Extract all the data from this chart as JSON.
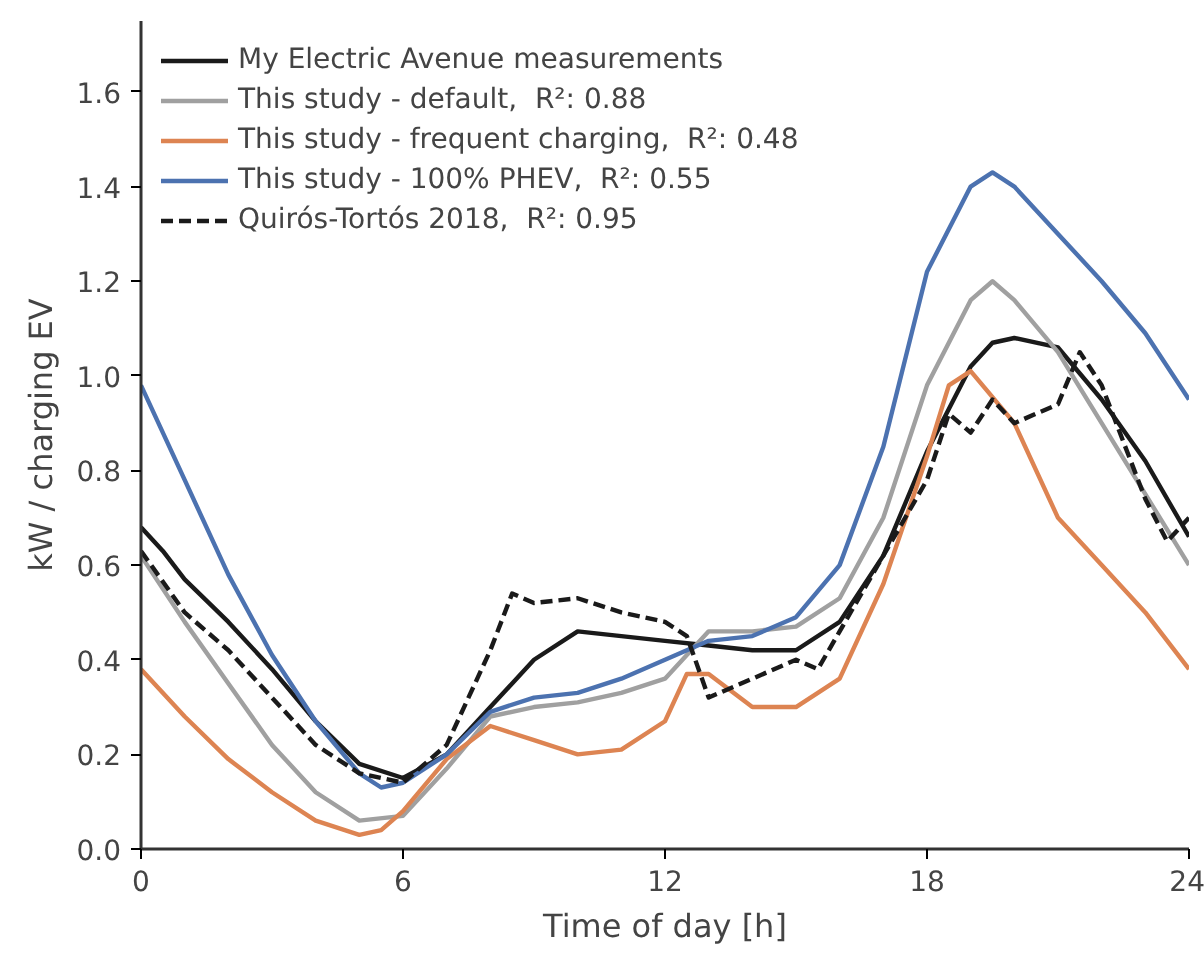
{
  "chart_data": {
    "type": "line",
    "xlabel": "Time of day [h]",
    "ylabel": "kW / charging EV",
    "xlim": [
      0,
      24
    ],
    "ylim": [
      0,
      1.75
    ],
    "xticks": [
      0,
      6,
      12,
      18,
      24
    ],
    "yticks": [
      {
        "value": 0,
        "label": "0.0"
      },
      0.2,
      0.4,
      0.6,
      0.8,
      {
        "value": 1,
        "label": "1.0"
      },
      1.2,
      1.4,
      1.6
    ],
    "grid": false,
    "legend": "top left",
    "series": [
      {
        "name": "My Electric Avenue measurements",
        "color": "#1a1a1a",
        "line_style": "solid",
        "x": [
          0,
          0.5,
          1,
          2,
          3,
          4,
          5,
          6,
          7,
          8,
          9,
          10,
          11,
          12,
          13,
          14,
          15,
          16,
          17,
          18,
          19,
          19.5,
          20,
          21,
          22,
          23,
          24
        ],
        "values": [
          0.68,
          0.63,
          0.57,
          0.48,
          0.38,
          0.27,
          0.18,
          0.15,
          0.2,
          0.3,
          0.4,
          0.46,
          0.45,
          0.44,
          0.43,
          0.42,
          0.42,
          0.48,
          0.62,
          0.84,
          1.02,
          1.07,
          1.08,
          1.06,
          0.95,
          0.82,
          0.66
        ]
      },
      {
        "name": "This study - default,  R²: 0.88",
        "color": "#a0a0a0",
        "line_style": "solid",
        "x": [
          0,
          1,
          2,
          3,
          4,
          5,
          6,
          7,
          8,
          9,
          10,
          11,
          12,
          13,
          14,
          15,
          16,
          17,
          18,
          19,
          19.5,
          20,
          21,
          22,
          23,
          24
        ],
        "values": [
          0.62,
          0.48,
          0.35,
          0.22,
          0.12,
          0.06,
          0.07,
          0.17,
          0.28,
          0.3,
          0.31,
          0.33,
          0.36,
          0.46,
          0.46,
          0.47,
          0.53,
          0.7,
          0.98,
          1.16,
          1.2,
          1.16,
          1.05,
          0.9,
          0.75,
          0.6
        ]
      },
      {
        "name": "This study - frequent charging,  R²: 0.48",
        "color": "#dd8452",
        "line_style": "solid",
        "x": [
          0,
          1,
          2,
          3,
          4,
          5,
          5.5,
          6,
          7,
          8,
          9,
          10,
          11,
          12,
          12.5,
          13,
          14,
          15,
          16,
          17,
          18,
          18.5,
          19,
          20,
          21,
          22,
          23,
          24
        ],
        "values": [
          0.38,
          0.28,
          0.19,
          0.12,
          0.06,
          0.03,
          0.04,
          0.08,
          0.19,
          0.26,
          0.23,
          0.2,
          0.21,
          0.27,
          0.37,
          0.37,
          0.3,
          0.3,
          0.36,
          0.56,
          0.83,
          0.98,
          1.01,
          0.9,
          0.7,
          0.6,
          0.5,
          0.38
        ]
      },
      {
        "name": "This study - 100% PHEV,  R²: 0.55",
        "color": "#4c72b0",
        "line_style": "solid",
        "x": [
          0,
          1,
          2,
          3,
          4,
          5,
          5.5,
          6,
          7,
          8,
          9,
          10,
          11,
          12,
          13,
          14,
          15,
          16,
          17,
          18,
          19,
          19.5,
          20,
          21,
          22,
          23,
          24
        ],
        "values": [
          0.98,
          0.78,
          0.58,
          0.41,
          0.27,
          0.16,
          0.13,
          0.14,
          0.2,
          0.29,
          0.32,
          0.33,
          0.36,
          0.4,
          0.44,
          0.45,
          0.49,
          0.6,
          0.85,
          1.22,
          1.4,
          1.43,
          1.4,
          1.3,
          1.2,
          1.09,
          0.95
        ]
      },
      {
        "name": "Quirós-Tortós 2018,  R²: 0.95",
        "color": "#1a1a1a",
        "line_style": "dashed",
        "x": [
          0,
          1,
          2,
          3,
          4,
          5,
          6,
          7,
          8,
          8.5,
          9,
          10,
          11,
          12,
          12.5,
          13,
          14,
          15,
          15.5,
          16,
          17,
          18,
          18.5,
          19,
          19.5,
          20,
          21,
          21.5,
          22,
          23,
          23.5,
          24
        ],
        "values": [
          0.63,
          0.5,
          0.42,
          0.32,
          0.22,
          0.16,
          0.14,
          0.22,
          0.42,
          0.54,
          0.52,
          0.53,
          0.5,
          0.48,
          0.45,
          0.32,
          0.36,
          0.4,
          0.38,
          0.46,
          0.62,
          0.78,
          0.92,
          0.88,
          0.95,
          0.9,
          0.94,
          1.05,
          0.98,
          0.74,
          0.65,
          0.7
        ]
      }
    ]
  }
}
